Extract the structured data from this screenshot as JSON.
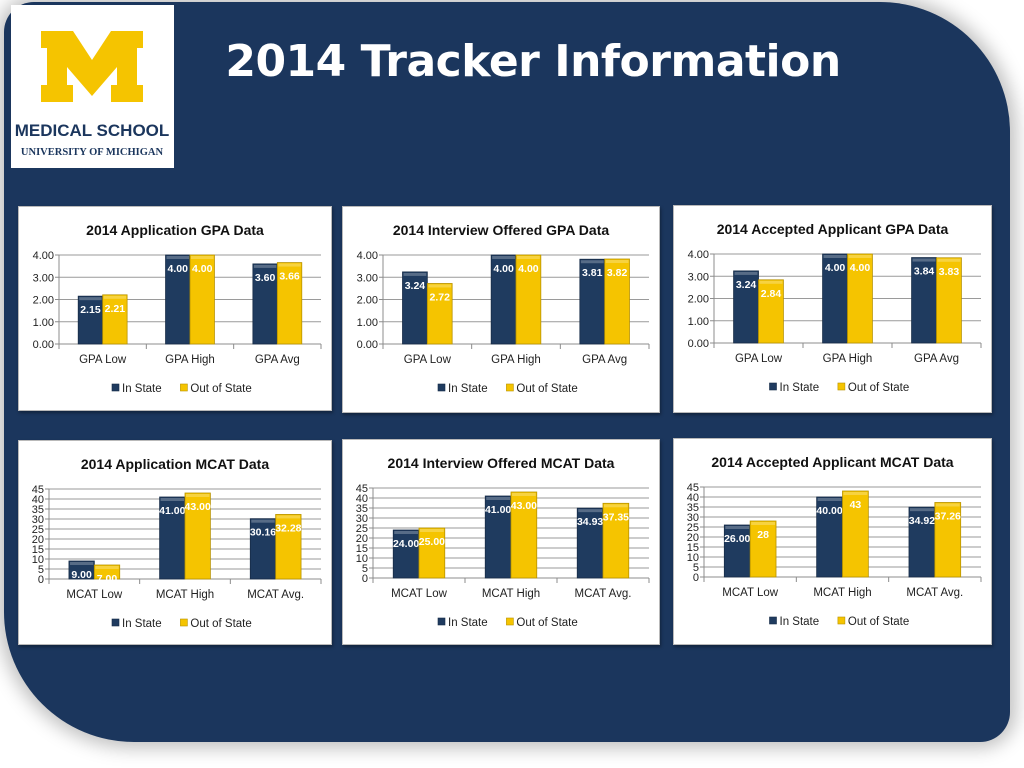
{
  "slide": {
    "title": "2014 Tracker Information",
    "background_color": "#1b365d"
  },
  "logo": {
    "mark": "M",
    "line1": "MEDICAL SCHOOL",
    "line2": "UNIVERSITY OF MICHIGAN",
    "mark_color": "#f5c400",
    "text_color": "#1b365d"
  },
  "colors": {
    "in_state": "#1f3b5f",
    "out_of_state": "#f5c400"
  },
  "chart_data": [
    {
      "type": "bar",
      "title": "2014 Application GPA Data",
      "categories": [
        "GPA Low",
        "GPA High",
        "GPA Avg"
      ],
      "series": [
        {
          "name": "In State",
          "values": [
            2.15,
            4.0,
            3.6
          ],
          "labels": [
            "2.15",
            "4.00",
            "3.60"
          ]
        },
        {
          "name": "Out of State",
          "values": [
            2.21,
            4.0,
            3.66
          ],
          "labels": [
            "2.21",
            "4.00",
            "3.66"
          ]
        }
      ],
      "yticks": [
        "0.00",
        "1.00",
        "2.00",
        "3.00",
        "4.00"
      ],
      "ylim": [
        0,
        4
      ],
      "grid": true,
      "legend": "bottom"
    },
    {
      "type": "bar",
      "title": "2014 Interview Offered GPA Data",
      "categories": [
        "GPA Low",
        "GPA High",
        "GPA Avg"
      ],
      "series": [
        {
          "name": "In State",
          "values": [
            3.24,
            4.0,
            3.81
          ],
          "labels": [
            "3.24",
            "4.00",
            "3.81"
          ]
        },
        {
          "name": "Out of State",
          "values": [
            2.72,
            4.0,
            3.82
          ],
          "labels": [
            "2.72",
            "4.00",
            "3.82"
          ]
        }
      ],
      "yticks": [
        "0.00",
        "1.00",
        "2.00",
        "3.00",
        "4.00"
      ],
      "ylim": [
        0,
        4
      ],
      "grid": true,
      "legend": "bottom"
    },
    {
      "type": "bar",
      "title": "2014 Accepted Applicant  GPA Data",
      "categories": [
        "GPA Low",
        "GPA High",
        "GPA Avg"
      ],
      "series": [
        {
          "name": "In State",
          "values": [
            3.24,
            4.0,
            3.84
          ],
          "labels": [
            "3.24",
            "4.00",
            "3.84"
          ]
        },
        {
          "name": "Out of State",
          "values": [
            2.84,
            4.0,
            3.83
          ],
          "labels": [
            "2.84",
            "4.00",
            "3.83"
          ]
        }
      ],
      "yticks": [
        "0.00",
        "1.00",
        "2.00",
        "3.00",
        "4.00"
      ],
      "ylim": [
        0,
        4
      ],
      "grid": true,
      "legend": "bottom"
    },
    {
      "type": "bar",
      "title": "2014 Application MCAT Data",
      "categories": [
        "MCAT Low",
        "MCAT High",
        "MCAT Avg."
      ],
      "series": [
        {
          "name": "In State",
          "values": [
            9.0,
            41.0,
            30.16
          ],
          "labels": [
            "9.00",
            "41.00",
            "30.16"
          ]
        },
        {
          "name": "Out of State",
          "values": [
            7.0,
            43.0,
            32.28
          ],
          "labels": [
            "7.00",
            "43.00",
            "32.28"
          ]
        }
      ],
      "yticks": [
        "0",
        "5",
        "10",
        "15",
        "20",
        "25",
        "30",
        "35",
        "40",
        "45"
      ],
      "ylim": [
        0,
        45
      ],
      "grid": true,
      "legend": "bottom"
    },
    {
      "type": "bar",
      "title": "2014 Interview Offered MCAT Data",
      "categories": [
        "MCAT Low",
        "MCAT High",
        "MCAT Avg."
      ],
      "series": [
        {
          "name": "In State",
          "values": [
            24.0,
            41.0,
            34.93
          ],
          "labels": [
            "24.00",
            "41.00",
            "34.93"
          ]
        },
        {
          "name": "Out of State",
          "values": [
            25.0,
            43.0,
            37.35
          ],
          "labels": [
            "25.00",
            "43.00",
            "37.35"
          ]
        }
      ],
      "yticks": [
        "0",
        "5",
        "10",
        "15",
        "20",
        "25",
        "30",
        "35",
        "40",
        "45"
      ],
      "ylim": [
        0,
        45
      ],
      "grid": true,
      "legend": "bottom"
    },
    {
      "type": "bar",
      "title": "2014 Accepted Applicant  MCAT Data",
      "categories": [
        "MCAT Low",
        "MCAT High",
        "MCAT Avg."
      ],
      "series": [
        {
          "name": "In State",
          "values": [
            26.0,
            40.0,
            34.92
          ],
          "labels": [
            "26.00",
            "40.00",
            "34.92"
          ]
        },
        {
          "name": "Out of State",
          "values": [
            28,
            43,
            37.26
          ],
          "labels": [
            "28",
            "43",
            "37.26"
          ]
        }
      ],
      "yticks": [
        "0",
        "5",
        "10",
        "15",
        "20",
        "25",
        "30",
        "35",
        "40",
        "45"
      ],
      "ylim": [
        0,
        45
      ],
      "grid": true,
      "legend": "bottom"
    }
  ]
}
